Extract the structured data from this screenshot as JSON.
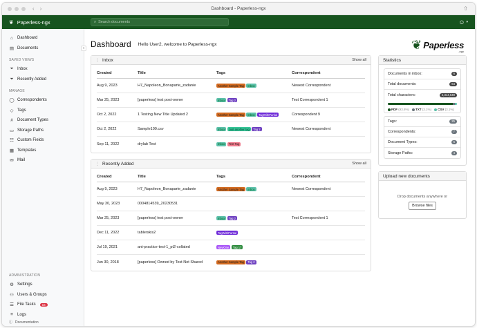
{
  "window": {
    "title": "Dashboard - Paperless-ngx"
  },
  "app": {
    "name": "Paperless-ngx"
  },
  "search": {
    "placeholder": "Search documents"
  },
  "sidebar": {
    "top": [
      {
        "label": "Dashboard",
        "icon": "house-icon"
      },
      {
        "label": "Documents",
        "icon": "files-icon"
      }
    ],
    "saved_views_heading": "SAVED VIEWS",
    "saved_views": [
      {
        "label": "Inbox",
        "icon": "funnel-icon"
      },
      {
        "label": "Recently Added",
        "icon": "funnel-icon"
      }
    ],
    "manage_heading": "MANAGE",
    "manage": [
      {
        "label": "Correspondents",
        "icon": "person-icon"
      },
      {
        "label": "Tags",
        "icon": "tag-icon"
      },
      {
        "label": "Document Types",
        "icon": "hash-icon"
      },
      {
        "label": "Storage Paths",
        "icon": "folder-icon"
      },
      {
        "label": "Custom Fields",
        "icon": "ui-radios-icon"
      },
      {
        "label": "Templates",
        "icon": "template-icon"
      },
      {
        "label": "Mail",
        "icon": "envelope-icon"
      }
    ],
    "admin_heading": "ADMINISTRATION",
    "admin": [
      {
        "label": "Settings",
        "icon": "gear-icon"
      },
      {
        "label": "Users & Groups",
        "icon": "people-icon"
      },
      {
        "label": "File Tasks",
        "icon": "list-task-icon",
        "badge": "16"
      },
      {
        "label": "Logs",
        "icon": "text-icon"
      }
    ],
    "footer": "Documentation"
  },
  "header": {
    "title": "Dashboard",
    "welcome": "Hello User2, welcome to Paperless-ngx",
    "logo_word": "Paperless",
    "logo_suffix": "-ngx"
  },
  "columns": {
    "created": "Created",
    "title": "Title",
    "tags": "Tags",
    "correspondent": "Correspondent"
  },
  "inbox": {
    "title": "Inbox",
    "show_all": "Show all",
    "rows": [
      {
        "created": "Aug 9, 2023",
        "title": "H7_Napoleon_Bonaparte_zadanie",
        "tags": [
          {
            "label": "Another Sample Tag",
            "cls": "t-ast"
          },
          {
            "label": "Inbox",
            "cls": "t-inbox"
          }
        ],
        "correspondent": "Newest Correspondent"
      },
      {
        "created": "Mar 25, 2023",
        "title": "[paperless] test post-owner",
        "tags": [
          {
            "label": "Inbox",
            "cls": "t-inbox"
          },
          {
            "label": "Tag 2",
            "cls": "t-tag2"
          }
        ],
        "correspondent": "Test Correspondent 1"
      },
      {
        "created": "Oct 2, 2022",
        "title": "1 Testing New Title Updated 2",
        "tags": [
          {
            "label": "Another Sample Tag",
            "cls": "t-ast"
          },
          {
            "label": "Inbox",
            "cls": "t-inbox"
          },
          {
            "label": "TagWithPartial",
            "cls": "t-twp"
          }
        ],
        "correspondent": "Correspondent 9"
      },
      {
        "created": "Oct 2, 2022",
        "title": "Sample100.csv",
        "tags": [
          {
            "label": "Inbox",
            "cls": "t-inbox"
          },
          {
            "label": "Just another tag",
            "cls": "t-jat"
          },
          {
            "label": "Tag 2",
            "cls": "t-tag2"
          }
        ],
        "correspondent": "Newest Correspondent"
      },
      {
        "created": "Sep 11, 2022",
        "title": "drylab Test",
        "tags": [
          {
            "label": "Inbox",
            "cls": "t-inbox"
          },
          {
            "label": "Test Tag",
            "cls": "t-test"
          }
        ],
        "correspondent": ""
      }
    ]
  },
  "recent": {
    "title": "Recently Added",
    "show_all": "Show all",
    "rows": [
      {
        "created": "Aug 9, 2023",
        "title": "H7_Napoleon_Bonaparte_zadanie",
        "tags": [
          {
            "label": "Another Sample Tag",
            "cls": "t-ast"
          },
          {
            "label": "Inbox",
            "cls": "t-inbox"
          }
        ],
        "correspondent": "Newest Correspondent"
      },
      {
        "created": "May 30, 2023",
        "title": "0004814539_20230531",
        "tags": [],
        "correspondent": ""
      },
      {
        "created": "Mar 25, 2023",
        "title": "[paperless] test post-owner",
        "tags": [
          {
            "label": "Inbox",
            "cls": "t-inbox"
          },
          {
            "label": "Tag 2",
            "cls": "t-tag2"
          }
        ],
        "correspondent": "Test Correspondent 1"
      },
      {
        "created": "Dec 11, 2022",
        "title": "tablerskis2",
        "tags": [
          {
            "label": "TagWithPartial",
            "cls": "t-twp"
          }
        ],
        "correspondent": ""
      },
      {
        "created": "Jul 19, 2021",
        "title": "ant-practice-test-1_pt2-collated",
        "tags": [
          {
            "label": "NewOne",
            "cls": "t-nw"
          },
          {
            "label": "Tag 17",
            "cls": "t-tag17"
          }
        ],
        "correspondent": ""
      },
      {
        "created": "Jun 30, 2018",
        "title": "[paperless] Owned by Test Not Shared",
        "tags": [
          {
            "label": "Another Sample Tag",
            "cls": "t-ast"
          },
          {
            "label": "Tag 2",
            "cls": "t-tag2"
          }
        ],
        "correspondent": ""
      }
    ]
  },
  "statistics": {
    "title": "Statistics",
    "top": [
      {
        "label": "Documents in inbox:",
        "value": "6"
      },
      {
        "label": "Total documents:",
        "value": "64"
      },
      {
        "label": "Total characters:",
        "value": "2,314,649"
      }
    ],
    "types": [
      {
        "label": "PDF",
        "pct": "(93.8%)",
        "color": "#17541f",
        "share": 93.8
      },
      {
        "label": "TXT",
        "pct": "(3.1%)",
        "color": "#6c757d",
        "share": 3.1
      },
      {
        "label": "CSV",
        "pct": "(3.1%)",
        "color": "#5bc0a9",
        "share": 3.1
      }
    ],
    "bottom": [
      {
        "label": "Tags:",
        "value": "25"
      },
      {
        "label": "Correspondents:",
        "value": "7"
      },
      {
        "label": "Document Types:",
        "value": "6"
      },
      {
        "label": "Storage Paths:",
        "value": "4"
      }
    ]
  },
  "upload": {
    "title": "Upload new documents",
    "hint": "Drop documents anywhere or",
    "button": "Browse files"
  }
}
